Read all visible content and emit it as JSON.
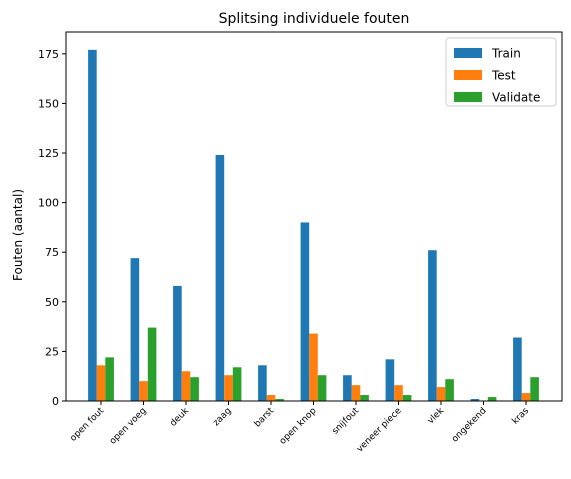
{
  "chart_data": {
    "type": "bar",
    "title": "Splitsing individuele fouten",
    "xlabel": "",
    "ylabel": "Fouten (aantal)",
    "ylim": [
      0,
      186
    ],
    "yticks": [
      0,
      25,
      50,
      75,
      100,
      125,
      150,
      175
    ],
    "grid": false,
    "legend_position": "top-right",
    "categories": [
      "open fout",
      "open voeg",
      "deuk",
      "zaag",
      "barst",
      "open knop",
      "snijfout",
      "veneer piece",
      "vlek",
      "ongekend",
      "kras"
    ],
    "series": [
      {
        "name": "Train",
        "color": "#1f77b4",
        "values": [
          177,
          72,
          58,
          124,
          18,
          90,
          13,
          21,
          76,
          1,
          32
        ]
      },
      {
        "name": "Test",
        "color": "#ff7f0e",
        "values": [
          18,
          10,
          15,
          13,
          3,
          34,
          8,
          8,
          7,
          0,
          4
        ]
      },
      {
        "name": "Validate",
        "color": "#2ca02c",
        "values": [
          22,
          37,
          12,
          17,
          1,
          13,
          3,
          3,
          11,
          2,
          12
        ]
      }
    ]
  }
}
